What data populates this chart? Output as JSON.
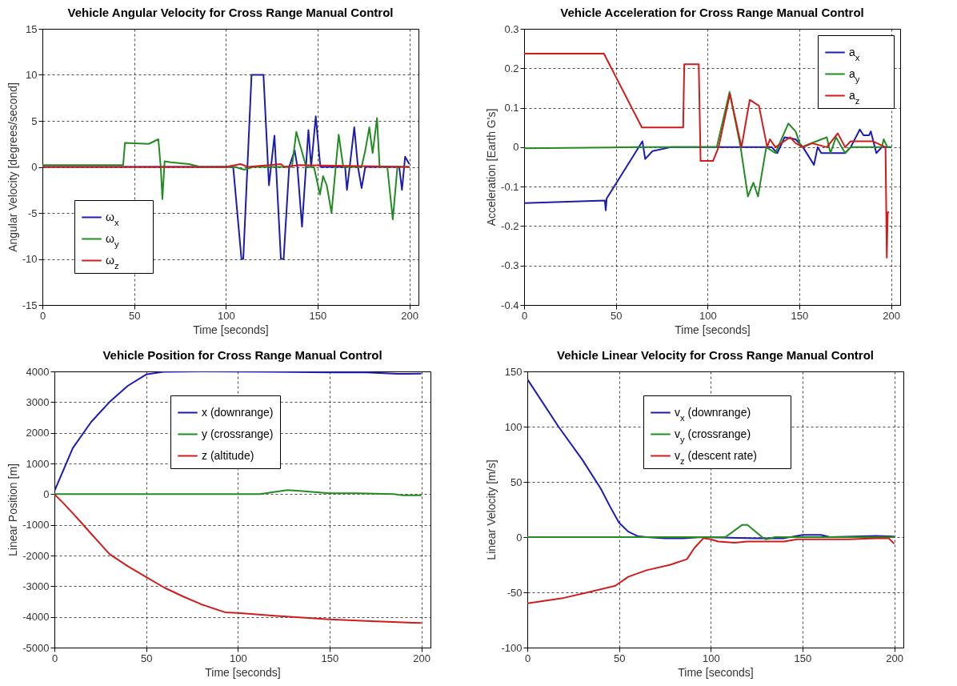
{
  "chart_data": [
    {
      "type": "line",
      "title": "Vehicle Angular Velocity for Cross Range Manual Control",
      "xlabel": "Time [seconds]",
      "ylabel": "Angular Velocity [degrees/second]",
      "xlim": [
        0,
        205
      ],
      "xticks": [
        0,
        50,
        100,
        150,
        200
      ],
      "ylim": [
        -15,
        15
      ],
      "yticks": [
        -15,
        -10,
        -5,
        0,
        5,
        10,
        15
      ],
      "grid": true,
      "legend": "bottom left",
      "series": [
        {
          "name": "ω$_{x}$",
          "color": "#1c1cb0",
          "x": [
            0,
            104,
            108.5,
            109.5,
            114,
            120.5,
            123.5,
            126.5,
            130,
            131.5,
            134.5,
            137.5,
            139,
            141.5,
            145,
            146.5,
            149,
            151.5,
            165,
            166,
            167.5,
            170,
            172,
            174,
            176,
            194.5,
            196,
            197.7,
            200
          ],
          "values": [
            0,
            0,
            -10,
            -10,
            10,
            10,
            -2,
            3.4,
            -10,
            -10,
            0,
            1.8,
            0,
            -6.5,
            4,
            0,
            5.5,
            0,
            0,
            -2.5,
            0,
            4.3,
            0,
            -2.3,
            0,
            0,
            -2.5,
            1.1,
            0.3
          ]
        },
        {
          "name": "ω$_{y}$",
          "color": "#228b22",
          "x": [
            0,
            44,
            45,
            58,
            63.2,
            64.5,
            65.4,
            66.6,
            70,
            80,
            86,
            105,
            110,
            115,
            136,
            138.4,
            143.8,
            148,
            151.3,
            153,
            155,
            157.6,
            161.5,
            164,
            174,
            176,
            178.2,
            180,
            182.4,
            183.8,
            188,
            191,
            193.5,
            200
          ],
          "values": [
            0.2,
            0.2,
            2.6,
            2.5,
            3,
            0,
            -3.5,
            0.6,
            0.5,
            0.3,
            0,
            0,
            -0.3,
            0,
            0,
            3.8,
            0,
            0,
            -3,
            -1,
            -2,
            -5,
            3.5,
            0,
            0,
            1.8,
            4.3,
            1.5,
            5.3,
            0,
            0,
            -5.7,
            0,
            0
          ]
        },
        {
          "name": "ω$_{z}$",
          "color": "#d01c1c",
          "x": [
            0,
            100,
            108,
            112,
            130,
            132,
            140,
            200
          ],
          "values": [
            0,
            0,
            0.3,
            0,
            0.3,
            0,
            0.2,
            0
          ]
        }
      ]
    },
    {
      "type": "line",
      "title": "Vehicle Acceleration for Cross Range Manual Control",
      "xlabel": "Time [seconds]",
      "ylabel": "Acceleration [Earth G's]",
      "xlim": [
        0,
        205
      ],
      "xticks": [
        0,
        50,
        100,
        150,
        200
      ],
      "ylim": [
        -0.4,
        0.3
      ],
      "yticks": [
        -0.4,
        -0.3,
        -0.2,
        -0.1,
        0,
        0.1,
        0.2,
        0.3
      ],
      "grid": true,
      "legend": "top right",
      "series": [
        {
          "name": "a$_{x}$",
          "color": "#1c1cb0",
          "x": [
            0,
            44,
            44.5,
            45,
            64.5,
            66,
            70,
            80,
            135,
            138,
            142,
            148,
            152,
            158,
            160,
            162,
            175,
            178,
            183,
            185,
            188,
            189,
            192,
            195,
            200
          ],
          "values": [
            -0.142,
            -0.135,
            -0.16,
            -0.13,
            0.015,
            -0.03,
            -0.01,
            0,
            0,
            -0.015,
            0.025,
            0.02,
            0,
            -0.045,
            0,
            -0.015,
            -0.015,
            0,
            0.045,
            0.03,
            0.03,
            0.04,
            -0.015,
            0,
            0
          ]
        },
        {
          "name": "a$_{y}$",
          "color": "#228b22",
          "x": [
            0,
            60,
            105,
            112,
            118,
            122,
            125,
            127.5,
            132,
            137,
            144,
            148,
            151,
            165,
            167,
            170,
            175,
            178,
            195,
            196,
            198,
            200
          ],
          "values": [
            -0.003,
            0,
            0,
            0.14,
            0,
            -0.125,
            -0.09,
            -0.125,
            0,
            -0.015,
            0.06,
            0.04,
            0,
            0.025,
            -0.015,
            0.025,
            -0.015,
            0,
            0,
            0.02,
            0,
            0
          ]
        },
        {
          "name": "a$_{z}$",
          "color": "#d01c1c",
          "x": [
            0,
            43.5,
            64.2,
            86.7,
            87.3,
            95.2,
            96.2,
            103,
            106,
            112.2,
            118.5,
            123,
            128,
            132.5,
            134,
            137,
            145,
            148,
            152,
            157,
            165,
            171,
            175,
            178,
            190,
            197,
            197.7,
            198.2,
            199
          ],
          "values": [
            0.237,
            0.237,
            0.05,
            0.05,
            0.21,
            0.21,
            -0.035,
            -0.035,
            0,
            0.135,
            0,
            0.12,
            0.105,
            0,
            0.02,
            0,
            0.025,
            0.01,
            0,
            0.01,
            0,
            0.035,
            0,
            0.015,
            0.015,
            0,
            -0.28,
            -0.165,
            -0.165
          ]
        }
      ]
    },
    {
      "type": "line",
      "title": "Vehicle Position for Cross Range Manual Control",
      "xlabel": "Time [seconds]",
      "ylabel": "Linear Position [m]",
      "xlim": [
        0,
        205
      ],
      "xticks": [
        0,
        50,
        100,
        150,
        200
      ],
      "ylim": [
        -5000,
        4000
      ],
      "yticks": [
        -5000,
        -4000,
        -3000,
        -2000,
        -1000,
        0,
        1000,
        2000,
        3000,
        4000
      ],
      "grid": true,
      "legend": "top",
      "series": [
        {
          "name": "x (downrange)",
          "color": "#1c1cb0",
          "x": [
            0,
            10,
            20,
            30,
            40,
            50,
            60,
            80,
            120,
            150,
            170,
            187,
            190,
            200
          ],
          "values": [
            100,
            1500,
            2350,
            3000,
            3530,
            3900,
            3990,
            4000,
            3990,
            3970,
            3970,
            3920,
            3920,
            3930
          ]
        },
        {
          "name": "y (crossrange)",
          "color": "#228b22",
          "x": [
            0,
            112,
            127,
            135,
            150,
            165,
            185,
            190,
            200
          ],
          "values": [
            0,
            0,
            130,
            100,
            30,
            30,
            0,
            -40,
            -40
          ]
        },
        {
          "name": "z (altitude)",
          "color": "#d01c1c",
          "x": [
            0,
            5,
            10,
            15,
            20,
            25,
            30,
            40,
            50,
            60,
            70,
            80,
            93,
            100,
            120,
            140,
            150,
            170,
            190,
            200
          ],
          "values": [
            0,
            -300,
            -620,
            -950,
            -1290,
            -1620,
            -1950,
            -2350,
            -2700,
            -3050,
            -3330,
            -3590,
            -3850,
            -3870,
            -3960,
            -4040,
            -4080,
            -4130,
            -4180,
            -4200
          ]
        }
      ]
    },
    {
      "type": "line",
      "title": "Vehicle Linear Velocity for Cross Range Manual Control",
      "xlabel": "Time [seconds]",
      "ylabel": "Linear Velocity [m/s]",
      "xlim": [
        0,
        205
      ],
      "xticks": [
        0,
        50,
        100,
        150,
        200
      ],
      "ylim": [
        -100,
        150
      ],
      "yticks": [
        -100,
        -50,
        0,
        50,
        100,
        150
      ],
      "grid": true,
      "legend": "top",
      "series": [
        {
          "name": "v$_{x}$ (downrange)",
          "color": "#1c1cb0",
          "x": [
            0,
            17,
            30,
            40,
            45,
            50,
            55,
            60,
            65,
            75,
            85,
            95,
            125,
            140,
            150,
            160,
            165,
            190,
            200
          ],
          "values": [
            143,
            100,
            70,
            44,
            28,
            13,
            5,
            1,
            0,
            -1,
            -1,
            0,
            -1,
            -1,
            2,
            2,
            0,
            1,
            0.5
          ]
        },
        {
          "name": "v$_{y}$ (crossrange)",
          "color": "#228b22",
          "x": [
            0,
            108,
            117,
            120,
            128,
            130,
            135,
            200
          ],
          "values": [
            0,
            0,
            11,
            11,
            0,
            -2,
            0,
            0
          ]
        },
        {
          "name": "v$_{z}$ (descent rate)",
          "color": "#d01c1c",
          "x": [
            0,
            20,
            33,
            48,
            55,
            65,
            78,
            87,
            91,
            96,
            100,
            104,
            113,
            120,
            130,
            140,
            147,
            165,
            175,
            190,
            197,
            200
          ],
          "values": [
            -60,
            -55,
            -50,
            -44,
            -36,
            -30,
            -25,
            -20,
            -10,
            -1,
            -2,
            -4,
            -5,
            -4,
            -4,
            -4,
            -2,
            -2,
            -2,
            -1,
            -1,
            -6
          ]
        }
      ]
    }
  ]
}
